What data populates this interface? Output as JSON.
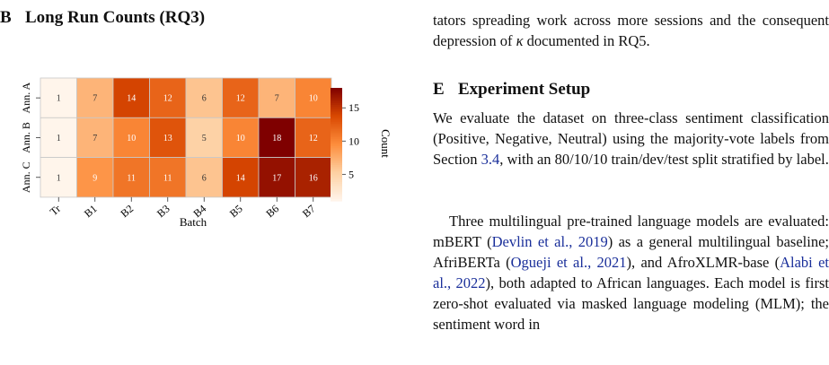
{
  "section_b": {
    "number": "B",
    "title": "Long Run Counts (RQ3)"
  },
  "section_e": {
    "number": "E",
    "title": "Experiment Setup"
  },
  "para_top": {
    "text": "tators spreading work across more sessions and the consequent depression of ",
    "symbol": "κ",
    "tail": " documented in RQ5."
  },
  "para_1": {
    "pre": "We evaluate the dataset on three-class sentiment classification (Positive, Negative, Neutral) using the majority-vote labels from Section ",
    "ref": "3.4",
    "post": ", with an 80/10/10 train/dev/test split stratified by label."
  },
  "para_2": {
    "t1": "Three multilingual pre-trained language models are evaluated: mBERT (",
    "c1": "Devlin et al., 2019",
    "t2": ") as a general multilingual baseline; AfriBERTa (",
    "c2": "Ogueji et al., 2021",
    "t3": "), and AfroXLMR-base (",
    "c3": "Alabi et al., 2022",
    "t4": "), both adapted to African languages. Each model is first zero-shot evaluated via masked language modeling (MLM); the sentiment word in"
  },
  "chart_data": {
    "type": "heatmap",
    "x": [
      "Tr",
      "B1",
      "B2",
      "B3",
      "B4",
      "B5",
      "B6",
      "B7"
    ],
    "y": [
      "Ann. A",
      "Ann. B",
      "Ann. C"
    ],
    "values": [
      [
        1,
        7,
        14,
        12,
        6,
        12,
        7,
        10
      ],
      [
        1,
        7,
        10,
        13,
        5,
        10,
        18,
        12
      ],
      [
        1,
        9,
        11,
        11,
        6,
        14,
        17,
        16
      ]
    ],
    "xlabel": "Batch",
    "ylabel": "",
    "colorbar": {
      "label": "Count",
      "ticks": [
        5,
        10,
        15
      ],
      "range": [
        1,
        18
      ]
    },
    "colormap": [
      "#fff5eb",
      "#fdd0a2",
      "#fd8d3c",
      "#d94801",
      "#7f0000"
    ]
  }
}
